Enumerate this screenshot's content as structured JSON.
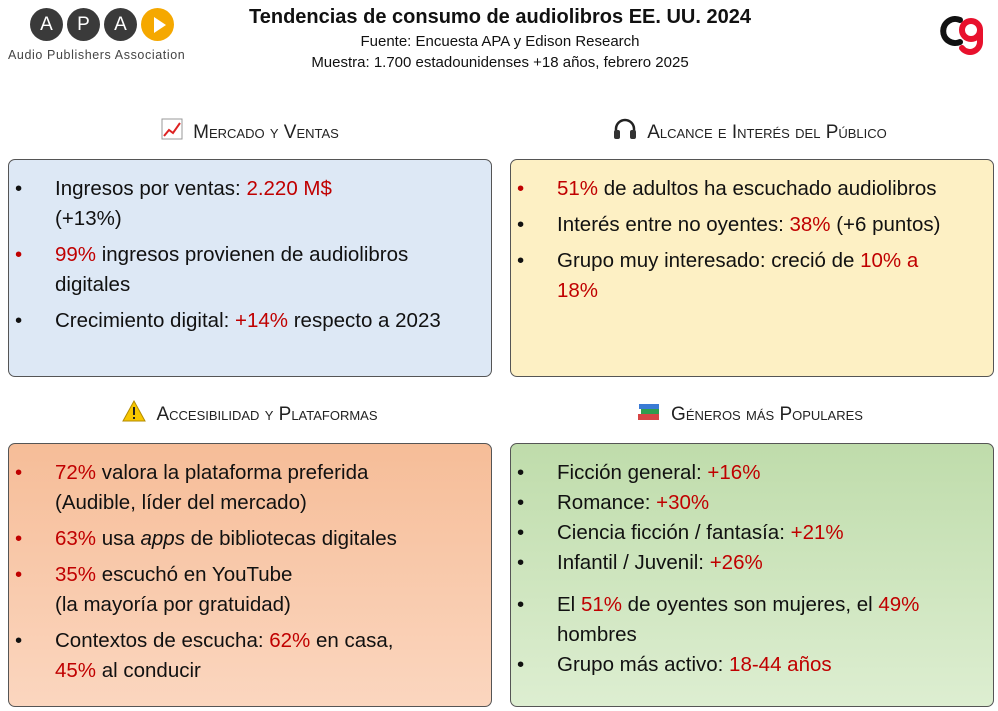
{
  "brand": {
    "apa_letters": [
      "A",
      "P",
      "A"
    ],
    "apa_name": "Audio Publishers Association"
  },
  "header": {
    "title": "Tendencias de consumo de audiolibros EE. UU. 2024",
    "source": "Fuente: Encuesta APA y Edison Research",
    "sample": "Muestra: 1.700 estadounidenses +18 años, febrero 2025"
  },
  "colors": {
    "highlight": "#c00000",
    "blue_panel": "#dde8f5",
    "yellow_panel": "#fdf0c4",
    "orange_panel": "#f8c9a8",
    "green_panel": "#c5e0b3"
  },
  "sections": {
    "market": {
      "icon": "chart-icon",
      "title": "Mercado y Ventas",
      "items": [
        {
          "a": "Ingresos por ventas: ",
          "b": "2.220 M$",
          "c": " (+13%)"
        },
        {
          "a": "",
          "b": "99%",
          "c": " ingresos provienen de audiolibros digitales"
        },
        {
          "a": "Crecimiento digital: ",
          "b": "+14%",
          "c": " respecto a 2023"
        }
      ]
    },
    "reach": {
      "icon": "headphones-icon",
      "title": "Alcance e Interés del Público",
      "items": [
        {
          "a": "",
          "b": "51%",
          "c": " de adultos ha escuchado audiolibros"
        },
        {
          "a": "Interés entre no oyentes: ",
          "b": "38%",
          "c": " (+6 puntos)"
        },
        {
          "a": "Grupo muy interesado: creció de ",
          "b": "10% a 18%",
          "c": ""
        }
      ]
    },
    "access": {
      "icon": "warning-icon",
      "title": "Accesibilidad y Plataformas",
      "items": [
        {
          "a": "",
          "b": "72%",
          "c": " valora la plataforma preferida (Audible, líder del mercado)"
        },
        {
          "a": "",
          "b": "63%",
          "c": " usa ",
          "d": "apps",
          "e": " de bibliotecas digitales"
        },
        {
          "a": "",
          "b": "35%",
          "c": " escuchó en YouTube",
          "e": "(la mayoría por gratuidad)"
        },
        {
          "a": "Contextos de escucha: ",
          "b": "62%",
          "c": " en casa, ",
          "d": "45%",
          "e": " al conducir"
        }
      ]
    },
    "genres": {
      "icon": "books-icon",
      "title": "Géneros más Populares",
      "items": [
        {
          "a": "Ficción general: ",
          "b": "+16%"
        },
        {
          "a": "Romance: ",
          "b": "+30%"
        },
        {
          "a": "Ciencia ficción / fantasía: ",
          "b": "+21%"
        },
        {
          "a": "Infantil / Juvenil: ",
          "b": "+26%"
        },
        {
          "a": "El ",
          "b": "51%",
          "c": " de oyentes son mujeres, el ",
          "d": "49%",
          "e": " hombres"
        },
        {
          "a": "Grupo más activo: ",
          "b": "18-44 años"
        }
      ]
    }
  }
}
